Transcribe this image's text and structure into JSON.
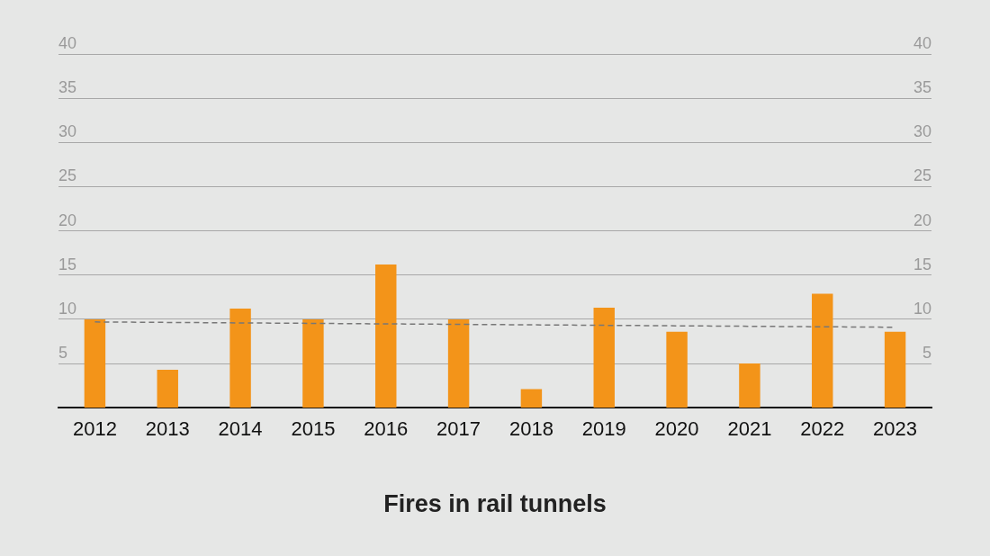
{
  "chart_data": {
    "type": "bar",
    "title": "Fires in rail tunnels",
    "categories": [
      "2012",
      "2013",
      "2014",
      "2015",
      "2016",
      "2017",
      "2018",
      "2019",
      "2020",
      "2021",
      "2022",
      "2023"
    ],
    "values": [
      10,
      4.3,
      11.2,
      10,
      16.2,
      10,
      2.1,
      11.3,
      8.6,
      5,
      12.9,
      8.6
    ],
    "color": "#f39419",
    "trend": {
      "values": [
        9.7,
        null,
        null,
        null,
        null,
        null,
        null,
        null,
        null,
        null,
        null,
        9.1
      ],
      "line_style": "dashed",
      "color": "#777777"
    },
    "ylim": [
      0,
      40
    ],
    "yticks": [
      5,
      10,
      15,
      20,
      25,
      30,
      35,
      40
    ],
    "y2lim": [
      0,
      40
    ],
    "y2ticks": [
      5,
      10,
      15,
      20,
      25,
      30,
      35,
      40
    ],
    "grid": true
  }
}
